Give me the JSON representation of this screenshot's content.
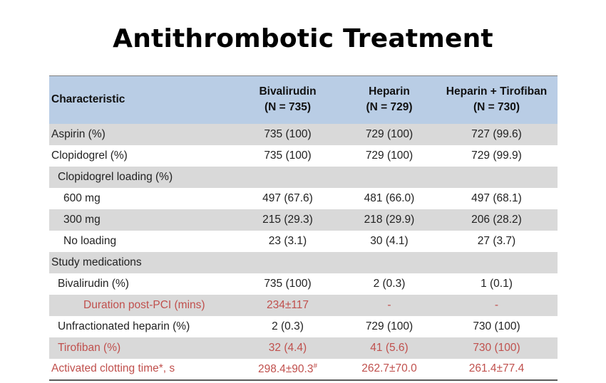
{
  "title": "Antithrombotic Treatment",
  "header": {
    "characteristic": "Characteristic",
    "bivalirudin": "Bivalirudin",
    "bivalirudin_n": "(N = 735)",
    "heparin": "Heparin",
    "heparin_n": "(N = 729)",
    "heparin_tirofiban": "Heparin + Tirofiban",
    "heparin_tirofiban_n": "(N = 730)"
  },
  "rows": [
    {
      "label": "Aspirin (%)",
      "bivalirudin": "735 (100)",
      "heparin": "729 (100)",
      "heparin_tirofiban": "727 (99.6)"
    },
    {
      "label": "Clopidogrel (%)",
      "bivalirudin": "735 (100)",
      "heparin": "729 (100)",
      "heparin_tirofiban": "729 (99.9)"
    },
    {
      "label": "Clopidogrel loading (%)",
      "bivalirudin": "",
      "heparin": "",
      "heparin_tirofiban": ""
    },
    {
      "label": "600 mg",
      "bivalirudin": "497 (67.6)",
      "heparin": "481 (66.0)",
      "heparin_tirofiban": "497 (68.1)"
    },
    {
      "label": "300 mg",
      "bivalirudin": "215 (29.3)",
      "heparin": "218 (29.9)",
      "heparin_tirofiban": "206 (28.2)"
    },
    {
      "label": "No loading",
      "bivalirudin": "23 (3.1)",
      "heparin": "30 (4.1)",
      "heparin_tirofiban": "27 (3.7)"
    },
    {
      "label": "Study medications",
      "bivalirudin": "",
      "heparin": "",
      "heparin_tirofiban": ""
    },
    {
      "label": "Bivalirudin (%)",
      "bivalirudin": "735 (100)",
      "heparin": "2 (0.3)",
      "heparin_tirofiban": "1 (0.1)"
    },
    {
      "label": "Duration post-PCI (mins)",
      "bivalirudin": "234±117",
      "heparin": "-",
      "heparin_tirofiban": "-"
    },
    {
      "label": "Unfractionated heparin (%)",
      "bivalirudin": "2 (0.3)",
      "heparin": "729 (100)",
      "heparin_tirofiban": "730 (100)"
    },
    {
      "label": "Tirofiban (%)",
      "bivalirudin": "32 (4.4)",
      "heparin": "41 (5.6)",
      "heparin_tirofiban": "730 (100)"
    },
    {
      "label": "Activated clotting time*, s",
      "bivalirudin": "298.4±90.3",
      "bivalirudin_mark": "#",
      "heparin": "262.7±70.0",
      "heparin_tirofiban": "261.4±77.4"
    }
  ],
  "colors": {
    "header_bg": "#b9cde5",
    "shade_bg": "#d9d9d9",
    "highlight_text": "#c0504d"
  }
}
